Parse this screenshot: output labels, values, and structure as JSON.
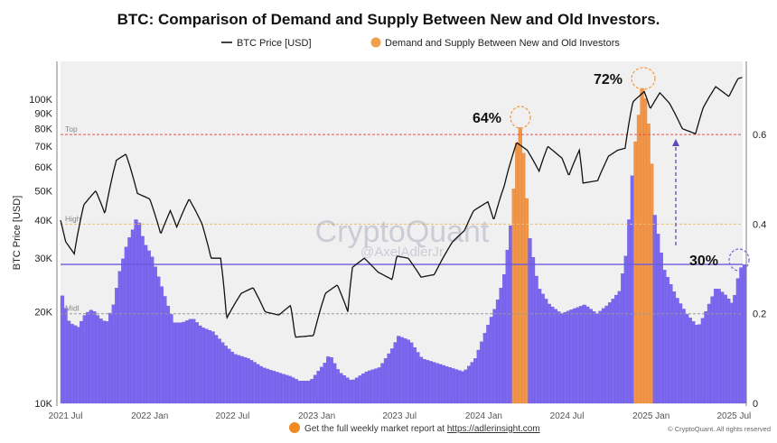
{
  "chart_data": {
    "type": "bar+line",
    "title": "BTC: Comparison of Demand and Supply Between New and Old Investors.",
    "ylabel": "BTC Price [USD]",
    "y_scale": "log",
    "ylim": [
      10000,
      140000
    ],
    "y2lim": [
      0,
      0.76
    ],
    "y_ticks": [
      "10K",
      "20K",
      "30K",
      "40K",
      "50K",
      "60K",
      "70K",
      "80K",
      "90K",
      "100K"
    ],
    "y_tick_values": [
      10000,
      20000,
      30000,
      40000,
      50000,
      60000,
      70000,
      80000,
      90000,
      100000
    ],
    "y2_ticks": [
      "0",
      "0.2",
      "0.4",
      "0.6"
    ],
    "y2_tick_values": [
      0,
      0.2,
      0.4,
      0.6
    ],
    "x_ticks": [
      "2021 Jul",
      "2022 Jan",
      "2022 Jul",
      "2023 Jan",
      "2023 Jul",
      "2024 Jan",
      "2024 Jul",
      "2025 Jan",
      "2025 Jul"
    ],
    "x_tick_dates": [
      "2021-07-01",
      "2022-01-01",
      "2022-07-01",
      "2023-01-01",
      "2023-07-01",
      "2024-01-01",
      "2024-07-01",
      "2025-01-01",
      "2025-07-01"
    ],
    "xlim": [
      "2021-06-20",
      "2025-07-20"
    ],
    "legend": [
      {
        "name": "BTC Price [USD]",
        "color": "#111111",
        "kind": "line"
      },
      {
        "name": "Demand and Supply Between New and Old Investors",
        "color": "#f0a04b",
        "kind": "dot"
      }
    ],
    "legend_position": "top",
    "colors": {
      "bars": "#7b68ee",
      "bars_highlight": "#f0954a",
      "plot_bg": "#f0f0f0",
      "top_line": "#e05050",
      "high_line": "#e8c070",
      "midl_line": "#999999",
      "threshold_line": "#6a5ae0"
    },
    "levels": [
      {
        "label": "Top",
        "value": 0.6
      },
      {
        "label": "High",
        "value": 0.4
      },
      {
        "label": "Midl",
        "value": 0.2
      }
    ],
    "threshold": 0.31,
    "highlight_ranges": [
      [
        "2024-02-28",
        "2024-04-02"
      ],
      [
        "2024-11-18",
        "2025-01-02"
      ]
    ],
    "annotations": [
      {
        "text": "64%",
        "date": "2024-03-14",
        "value": 0.64
      },
      {
        "text": "72%",
        "date": "2024-12-10",
        "value": 0.72
      },
      {
        "text": "30%",
        "date": "2025-07-10",
        "value": 0.3
      }
    ],
    "price_series": {
      "name": "BTC Price [USD]",
      "points": [
        [
          "2021-06-20",
          40000
        ],
        [
          "2021-07-01",
          34000
        ],
        [
          "2021-07-20",
          31000
        ],
        [
          "2021-08-10",
          45000
        ],
        [
          "2021-09-05",
          50000
        ],
        [
          "2021-09-25",
          42000
        ],
        [
          "2021-10-20",
          63000
        ],
        [
          "2021-11-10",
          66000
        ],
        [
          "2021-12-05",
          49000
        ],
        [
          "2022-01-01",
          47000
        ],
        [
          "2022-01-25",
          36000
        ],
        [
          "2022-02-15",
          43000
        ],
        [
          "2022-03-01",
          38000
        ],
        [
          "2022-03-28",
          47000
        ],
        [
          "2022-04-25",
          39000
        ],
        [
          "2022-05-15",
          30000
        ],
        [
          "2022-06-05",
          30000
        ],
        [
          "2022-06-18",
          19000
        ],
        [
          "2022-07-20",
          23000
        ],
        [
          "2022-08-15",
          24000
        ],
        [
          "2022-09-10",
          20000
        ],
        [
          "2022-10-10",
          19500
        ],
        [
          "2022-11-05",
          21000
        ],
        [
          "2022-11-15",
          16500
        ],
        [
          "2022-12-25",
          16700
        ],
        [
          "2023-01-20",
          23000
        ],
        [
          "2023-02-15",
          24500
        ],
        [
          "2023-03-10",
          20000
        ],
        [
          "2023-03-20",
          28000
        ],
        [
          "2023-04-15",
          30000
        ],
        [
          "2023-05-15",
          27000
        ],
        [
          "2023-06-15",
          25500
        ],
        [
          "2023-06-25",
          30500
        ],
        [
          "2023-07-20",
          30000
        ],
        [
          "2023-08-17",
          26000
        ],
        [
          "2023-09-15",
          26500
        ],
        [
          "2023-10-25",
          34000
        ],
        [
          "2023-11-20",
          37000
        ],
        [
          "2023-12-10",
          43000
        ],
        [
          "2024-01-10",
          46000
        ],
        [
          "2024-01-23",
          40000
        ],
        [
          "2024-02-15",
          52000
        ],
        [
          "2024-03-13",
          72000
        ],
        [
          "2024-04-05",
          68000
        ],
        [
          "2024-05-01",
          58000
        ],
        [
          "2024-05-20",
          70000
        ],
        [
          "2024-06-20",
          64000
        ],
        [
          "2024-07-05",
          56000
        ],
        [
          "2024-07-28",
          68000
        ],
        [
          "2024-08-05",
          53000
        ],
        [
          "2024-09-06",
          54000
        ],
        [
          "2024-09-30",
          65000
        ],
        [
          "2024-10-20",
          68000
        ],
        [
          "2024-11-05",
          69000
        ],
        [
          "2024-11-22",
          98000
        ],
        [
          "2024-12-17",
          106000
        ],
        [
          "2024-12-30",
          93000
        ],
        [
          "2025-01-20",
          105000
        ],
        [
          "2025-02-10",
          97000
        ],
        [
          "2025-03-10",
          80000
        ],
        [
          "2025-04-08",
          77000
        ],
        [
          "2025-04-25",
          94000
        ],
        [
          "2025-05-22",
          110000
        ],
        [
          "2025-06-20",
          102000
        ],
        [
          "2025-07-10",
          117000
        ],
        [
          "2025-07-20",
          118000
        ]
      ]
    },
    "indicator_series": {
      "name": "Demand and Supply Between New and Old Investors",
      "points": [
        [
          "2021-06-20",
          0.24
        ],
        [
          "2021-07-05",
          0.18
        ],
        [
          "2021-07-25",
          0.17
        ],
        [
          "2021-08-10",
          0.2
        ],
        [
          "2021-08-25",
          0.21
        ],
        [
          "2021-09-10",
          0.19
        ],
        [
          "2021-09-25",
          0.18
        ],
        [
          "2021-10-10",
          0.22
        ],
        [
          "2021-10-25",
          0.3
        ],
        [
          "2021-11-10",
          0.36
        ],
        [
          "2021-11-22",
          0.39
        ],
        [
          "2021-12-01",
          0.42
        ],
        [
          "2021-12-15",
          0.36
        ],
        [
          "2022-01-01",
          0.33
        ],
        [
          "2022-01-20",
          0.27
        ],
        [
          "2022-02-05",
          0.22
        ],
        [
          "2022-02-20",
          0.18
        ],
        [
          "2022-03-10",
          0.18
        ],
        [
          "2022-04-01",
          0.19
        ],
        [
          "2022-04-20",
          0.17
        ],
        [
          "2022-05-15",
          0.16
        ],
        [
          "2022-06-10",
          0.13
        ],
        [
          "2022-07-01",
          0.11
        ],
        [
          "2022-08-01",
          0.1
        ],
        [
          "2022-09-01",
          0.08
        ],
        [
          "2022-10-01",
          0.07
        ],
        [
          "2022-11-01",
          0.06
        ],
        [
          "2022-11-20",
          0.05
        ],
        [
          "2022-12-15",
          0.05
        ],
        [
          "2023-01-15",
          0.09
        ],
        [
          "2023-01-25",
          0.11
        ],
        [
          "2023-02-15",
          0.07
        ],
        [
          "2023-03-15",
          0.05
        ],
        [
          "2023-04-15",
          0.07
        ],
        [
          "2023-05-15",
          0.08
        ],
        [
          "2023-06-10",
          0.12
        ],
        [
          "2023-06-25",
          0.15
        ],
        [
          "2023-07-20",
          0.14
        ],
        [
          "2023-08-15",
          0.1
        ],
        [
          "2023-09-15",
          0.09
        ],
        [
          "2023-10-15",
          0.08
        ],
        [
          "2023-11-15",
          0.07
        ],
        [
          "2023-12-10",
          0.1
        ],
        [
          "2024-01-05",
          0.17
        ],
        [
          "2024-01-25",
          0.22
        ],
        [
          "2024-02-10",
          0.28
        ],
        [
          "2024-02-28",
          0.42
        ],
        [
          "2024-03-14",
          0.64
        ],
        [
          "2024-03-25",
          0.55
        ],
        [
          "2024-04-05",
          0.38
        ],
        [
          "2024-04-25",
          0.26
        ],
        [
          "2024-05-20",
          0.22
        ],
        [
          "2024-06-15",
          0.2
        ],
        [
          "2024-07-10",
          0.21
        ],
        [
          "2024-08-05",
          0.22
        ],
        [
          "2024-09-01",
          0.2
        ],
        [
          "2024-09-25",
          0.22
        ],
        [
          "2024-10-20",
          0.25
        ],
        [
          "2024-11-05",
          0.34
        ],
        [
          "2024-11-20",
          0.55
        ],
        [
          "2024-12-10",
          0.72
        ],
        [
          "2024-12-25",
          0.6
        ],
        [
          "2025-01-05",
          0.42
        ],
        [
          "2025-01-25",
          0.3
        ],
        [
          "2025-02-20",
          0.24
        ],
        [
          "2025-03-15",
          0.2
        ],
        [
          "2025-04-10",
          0.17
        ],
        [
          "2025-04-25",
          0.2
        ],
        [
          "2025-05-20",
          0.26
        ],
        [
          "2025-06-10",
          0.24
        ],
        [
          "2025-06-25",
          0.22
        ],
        [
          "2025-07-10",
          0.3
        ],
        [
          "2025-07-20",
          0.31
        ]
      ]
    }
  },
  "watermark": {
    "brand": "CryptoQuant",
    "handle": "@AxelAdlerJr"
  },
  "footer": {
    "text": "Get the full weekly market report at ",
    "link": "https://adlerinsight.com",
    "copyright": "© CryptoQuant. All rights reserved"
  }
}
